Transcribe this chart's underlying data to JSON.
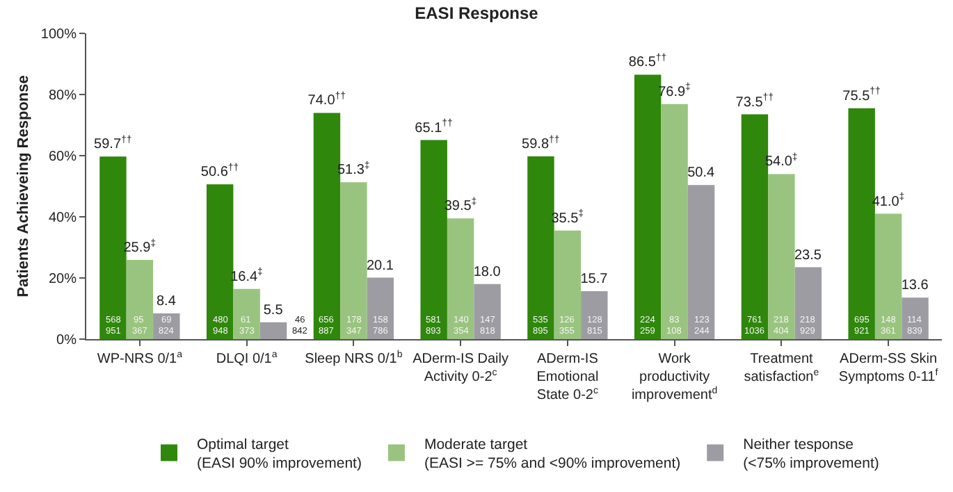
{
  "chart_data": {
    "type": "bar",
    "title": "EASI Response",
    "ylabel": "Patients Achieveing Response",
    "categories": [
      "WP-NRS 0/1$^{a}$",
      "DLQI 0/1$^{a}$",
      "Sleep NRS 0/1$^{b}$",
      "ADerm-IS Daily Activity 0-2$^{c}$",
      "ADerm-IS Emotional State 0-2$^{c}$",
      "Work productivity improvement$^{d}$",
      "Treatment satisfaction$^{e}$",
      "ADerm-SS Skin Symptoms 0-11$^{f}$"
    ],
    "series": [
      {
        "name": "Optimal target (EASI 90% improvement)",
        "color": "#2f870c",
        "values": [
          59.7,
          50.6,
          74.0,
          65.1,
          59.8,
          86.5,
          73.5,
          75.5
        ],
        "value_labels": [
          "59.7$^{††}$",
          "50.6$^{††}$",
          "74.0$^{††}$",
          "65.1$^{††}$",
          "59.8$^{††}$",
          "86.5$^{††}$",
          "73.5$^{††}$",
          "75.5$^{††}$"
        ]
      },
      {
        "name": "Moderate target (EASI >= 75% and <90% improvement)",
        "color": "#99c47f",
        "values": [
          25.9,
          16.4,
          51.3,
          39.5,
          35.5,
          76.9,
          54.0,
          41.0
        ],
        "value_labels": [
          "25.9$^{‡}$",
          "16.4$^{‡}$",
          "51.3$^{‡}$",
          "39.5$^{‡}$",
          "35.5$^{‡}$",
          "76.9$^{‡}$",
          "54.0$^{‡}$",
          "41.0$^{‡}$"
        ]
      },
      {
        "name": "Neither tesponse (<75% improvement)",
        "color": "#9d9ca3",
        "values": [
          8.4,
          5.5,
          20.1,
          18.0,
          15.7,
          50.4,
          23.5,
          13.6
        ],
        "value_labels": [
          "8.4",
          "5.5",
          "20.1",
          "18.0",
          "15.7",
          "50.4",
          "23.5",
          "13.6"
        ]
      }
    ],
    "ylim": [
      0,
      100
    ],
    "yticks": [
      {
        "value": 0,
        "label": "0%"
      },
      {
        "value": 20,
        "label": "20%"
      },
      {
        "value": 40,
        "label": "40%"
      },
      {
        "value": 60,
        "label": "60%"
      },
      {
        "value": 80,
        "label": "80%"
      },
      {
        "value": 100,
        "label": "100%"
      }
    ],
    "grid": false,
    "legend": "bottom",
    "annotations": [
      "568",
      "951",
      "95",
      "367",
      "69",
      "824",
      "480",
      "948",
      "61",
      "373",
      "46",
      "842",
      "656",
      "887",
      "178",
      "347",
      "158",
      "786",
      "581",
      "893",
      "140",
      "354",
      "147",
      "818",
      "535",
      "895",
      "126",
      "355",
      "128",
      "815",
      "224",
      "259",
      "83",
      "108",
      "123",
      "244",
      "761",
      "1036",
      "218",
      "404",
      "218",
      "929",
      "695",
      "921",
      "148",
      "361",
      "114",
      "839"
    ]
  }
}
